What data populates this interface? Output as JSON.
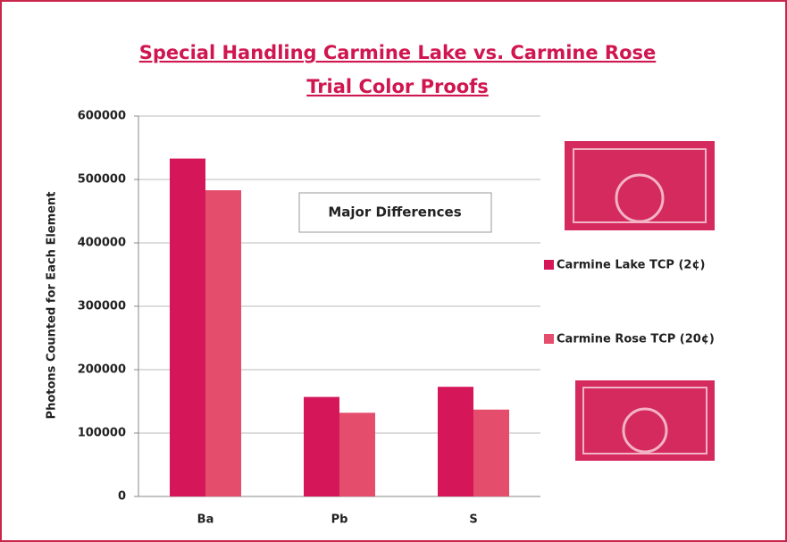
{
  "chart_data": {
    "type": "bar",
    "title": [
      "Special Handling Carmine Lake vs. Carmine Rose",
      "Trial Color Proofs"
    ],
    "y_label": "Photons Counted for Each Element",
    "annotation": "Major Differences",
    "categories": [
      "Ba",
      "Pb",
      "S"
    ],
    "series": [
      {
        "name": "Carmine Lake TCP (2¢)",
        "color": "#d5175a",
        "values": [
          533000,
          157000,
          173000
        ]
      },
      {
        "name": "Carmine Rose TCP (20¢)",
        "color": "#e44d6c",
        "values": [
          483000,
          132000,
          137000
        ]
      }
    ],
    "ylim": [
      0,
      600000
    ],
    "yticks": [
      0,
      100000,
      200000,
      300000,
      400000,
      500000,
      600000
    ],
    "grid": true,
    "legend": "right"
  }
}
